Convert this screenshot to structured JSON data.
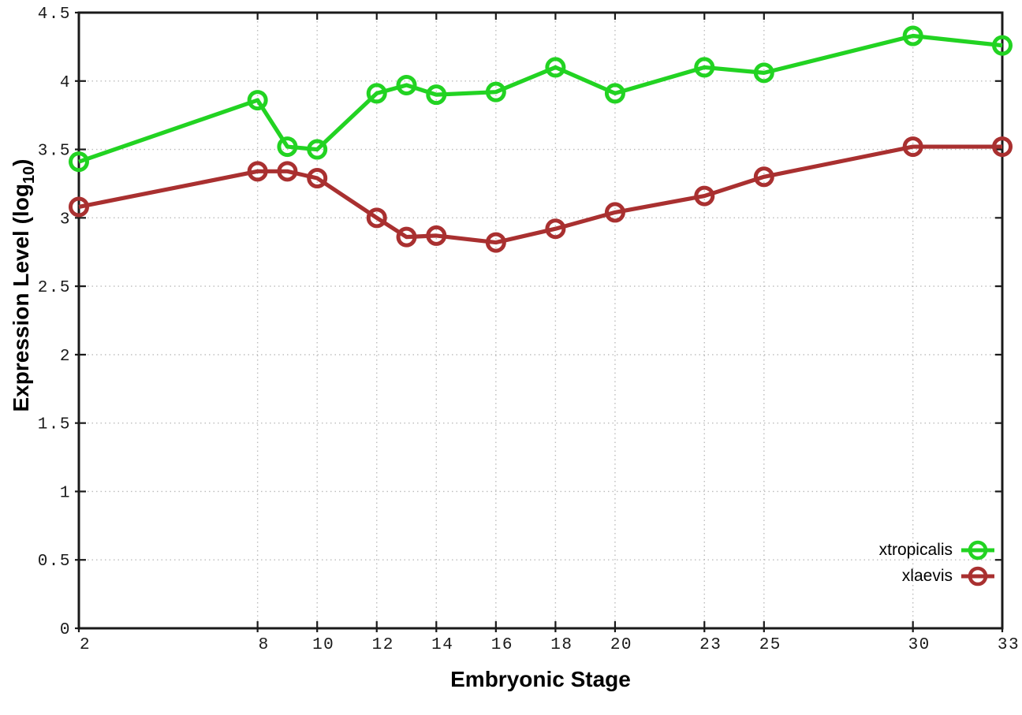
{
  "chart_data": {
    "type": "line",
    "title": "",
    "xlabel": "Embryonic Stage",
    "ylabel": "Expression Level (log10)",
    "ylabel_prefix": "Expression Level (log",
    "ylabel_sub": "10",
    "ylabel_suffix": ")",
    "x": [
      2,
      8,
      9,
      10,
      12,
      13,
      14,
      16,
      18,
      20,
      23,
      25,
      30,
      33
    ],
    "series": [
      {
        "name": "xtropicalis",
        "color": "#22d322",
        "values": [
          3.41,
          3.86,
          3.52,
          3.5,
          3.91,
          3.97,
          3.9,
          3.92,
          4.1,
          3.91,
          4.1,
          4.06,
          4.33,
          4.26
        ]
      },
      {
        "name": "xlaevis",
        "color": "#a93030",
        "values": [
          3.08,
          3.34,
          3.34,
          3.29,
          3.0,
          2.86,
          2.87,
          2.82,
          2.92,
          3.04,
          3.16,
          3.3,
          3.52,
          3.52
        ]
      }
    ],
    "xlim": [
      2,
      33
    ],
    "ylim": [
      0,
      4.5
    ],
    "x_ticks": [
      2,
      8,
      10,
      12,
      14,
      16,
      18,
      20,
      23,
      25,
      30,
      33
    ],
    "x_tick_labels": [
      "2",
      "8",
      "10",
      "12",
      "14",
      "16",
      "18",
      "20",
      "23",
      "25",
      "30",
      "33"
    ],
    "y_ticks": [
      0,
      0.5,
      1,
      1.5,
      2,
      2.5,
      3,
      3.5,
      4,
      4.5
    ],
    "y_tick_labels": [
      "0",
      "0.5",
      "1",
      "1.5",
      "2",
      "2.5",
      "3",
      "3.5",
      "4",
      "4.5"
    ],
    "grid": true,
    "legend_position": "bottom-right",
    "marker": "open-circle",
    "colors": {
      "grid": "#bcbcbc",
      "axis": "#1a1a1a",
      "text": "#000000"
    }
  }
}
